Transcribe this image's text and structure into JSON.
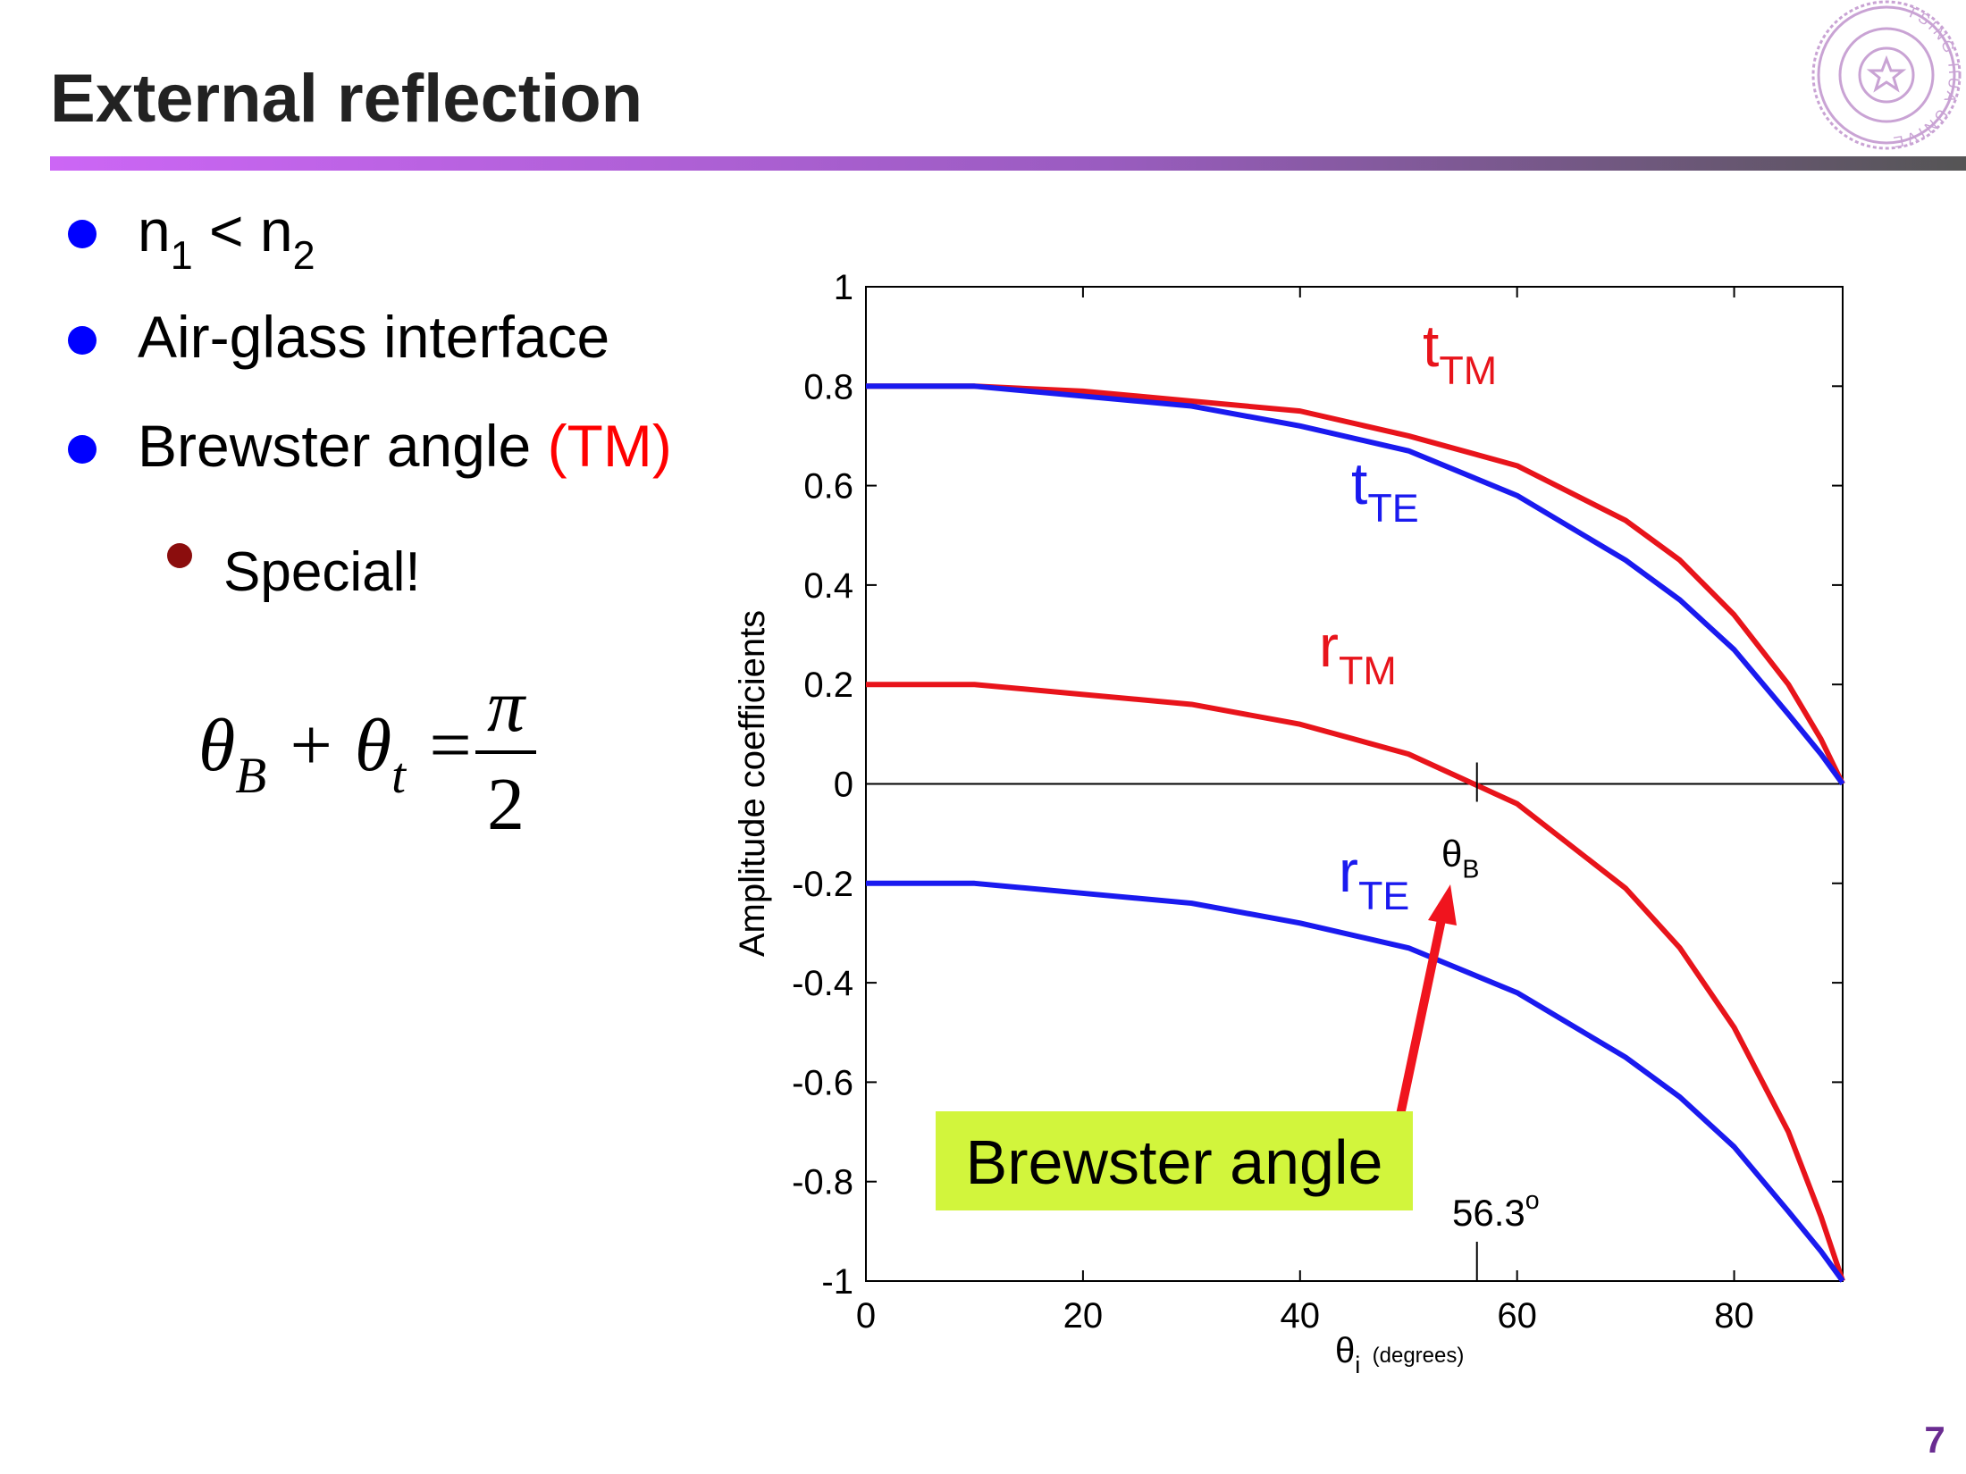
{
  "slide": {
    "title": "External reflection",
    "bullets": [
      [
        {
          "text": "n"
        },
        {
          "text": "1",
          "style": "sub"
        },
        {
          "text": " < n"
        },
        {
          "text": "2",
          "style": "sub"
        }
      ],
      [
        {
          "text": "Air-glass interface"
        }
      ],
      [
        {
          "text": "Brewster angle "
        },
        {
          "text": "(TM)",
          "style": "red"
        }
      ]
    ],
    "sub_bullets": [
      [
        {
          "text": "Special!"
        }
      ]
    ],
    "equation": {
      "lhs": [
        {
          "text": "θ"
        },
        {
          "text": "B",
          "style": "sub"
        },
        {
          "text": " + "
        },
        {
          "text": "θ"
        },
        {
          "text": "t",
          "style": "sub"
        },
        {
          "text": " = "
        }
      ],
      "numerator": "π",
      "denominator": "2"
    },
    "logo_text": "TSING HUA UNIVERSITY",
    "page_number": "7"
  },
  "chart_data": {
    "type": "line",
    "ylabel": "Amplitude coefficients",
    "xlabel_parts": [
      {
        "text": "θ"
      },
      {
        "text": "i",
        "style": "sub"
      },
      {
        "text": "  (degrees)",
        "style": "small"
      }
    ],
    "x": [
      0,
      10,
      20,
      30,
      40,
      50,
      60,
      70,
      75,
      80,
      85,
      88,
      90
    ],
    "series": [
      {
        "label_parts": [
          {
            "text": "t"
          },
          {
            "text": "TM",
            "style": "sub"
          }
        ],
        "color": "#e8141b",
        "values": [
          0.8,
          0.8,
          0.79,
          0.77,
          0.75,
          0.7,
          0.64,
          0.53,
          0.45,
          0.34,
          0.2,
          0.09,
          0
        ]
      },
      {
        "label_parts": [
          {
            "text": "t"
          },
          {
            "text": "TE",
            "style": "sub"
          }
        ],
        "color": "#1a1aef",
        "values": [
          0.8,
          0.8,
          0.78,
          0.76,
          0.72,
          0.67,
          0.58,
          0.45,
          0.37,
          0.27,
          0.14,
          0.06,
          0
        ]
      },
      {
        "label_parts": [
          {
            "text": "r"
          },
          {
            "text": "TM",
            "style": "sub"
          }
        ],
        "color": "#e8141b",
        "values": [
          0.2,
          0.2,
          0.18,
          0.16,
          0.12,
          0.06,
          -0.04,
          -0.21,
          -0.33,
          -0.49,
          -0.7,
          -0.87,
          -1
        ]
      },
      {
        "label_parts": [
          {
            "text": "r"
          },
          {
            "text": "TE",
            "style": "sub"
          }
        ],
        "color": "#1a1aef",
        "values": [
          -0.2,
          -0.2,
          -0.22,
          -0.24,
          -0.28,
          -0.33,
          -0.42,
          -0.55,
          -0.63,
          -0.73,
          -0.86,
          -0.94,
          -1
        ]
      }
    ],
    "xlim": [
      0,
      90
    ],
    "ylim": [
      -1,
      1
    ],
    "xticks": [
      0,
      20,
      40,
      60,
      80
    ],
    "yticks": [
      -1,
      -0.8,
      -0.6,
      -0.4,
      -0.2,
      0,
      0.2,
      0.4,
      0.6,
      0.8,
      1
    ],
    "brewster": {
      "value": 56.3,
      "label_parts": [
        {
          "text": "56.3"
        },
        {
          "text": "o",
          "style": "sup"
        }
      ],
      "symbol_parts": [
        {
          "text": "θ"
        },
        {
          "text": "B",
          "style": "sub"
        }
      ],
      "callout": "Brewster angle",
      "callout_color": "#d2f53c",
      "arrow_color": "#f0141e"
    }
  }
}
